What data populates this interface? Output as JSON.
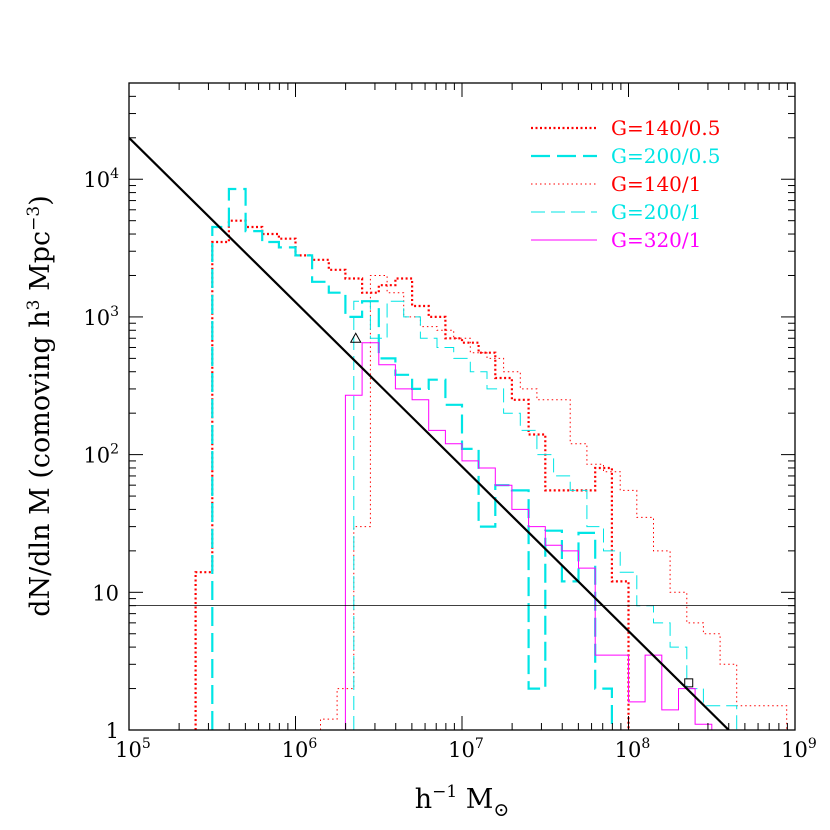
{
  "chart_data": {
    "type": "line",
    "xscale": "log",
    "yscale": "log",
    "xlim": [
      100000,
      1000000000
    ],
    "ylim": [
      1,
      50000
    ],
    "xlabel": "h⁻¹ M⊙",
    "ylabel": "dN/dln M (comoving h³ Mpc⁻³)",
    "xticks": [
      {
        "value": 100000,
        "base": "10",
        "exp": "5"
      },
      {
        "value": 1000000,
        "base": "10",
        "exp": "6"
      },
      {
        "value": 10000000,
        "base": "10",
        "exp": "7"
      },
      {
        "value": 100000000,
        "base": "10",
        "exp": "8"
      },
      {
        "value": 1000000000,
        "base": "10",
        "exp": "9"
      }
    ],
    "yticks": [
      {
        "value": 1,
        "base": "1",
        "exp": ""
      },
      {
        "value": 10,
        "base": "10",
        "exp": ""
      },
      {
        "value": 100,
        "base": "10",
        "exp": "2"
      },
      {
        "value": 1000,
        "base": "10",
        "exp": "3"
      },
      {
        "value": 10000,
        "base": "10",
        "exp": "4"
      }
    ],
    "hline": {
      "y": 8
    },
    "power_law": {
      "x": [
        100000,
        400000000
      ],
      "y": [
        20000,
        1
      ]
    },
    "markers": [
      {
        "shape": "triangle",
        "x": 2300000,
        "y": 700
      },
      {
        "shape": "square",
        "x": 230000000,
        "y": 2.2
      }
    ],
    "series": [
      {
        "name": "G=140/0.5",
        "color": "#ff0000",
        "dash": "2,2.5",
        "width": 2.2,
        "edges_log": [
          5.4,
          5.5,
          5.6,
          5.7,
          5.8,
          5.9,
          6.0,
          6.1,
          6.2,
          6.3,
          6.4,
          6.5,
          6.6,
          6.7,
          6.8,
          6.9,
          7.0,
          7.1,
          7.2,
          7.3,
          7.4,
          7.5,
          7.6,
          7.7,
          7.8,
          7.9,
          8.0
        ],
        "y": [
          14,
          3500,
          5000,
          4500,
          4000,
          3700,
          2800,
          2600,
          2200,
          1900,
          1500,
          1700,
          1900,
          1200,
          1000,
          700,
          650,
          550,
          360,
          250,
          140,
          55,
          55,
          55,
          80,
          12
        ]
      },
      {
        "name": "G=200/0.5",
        "color": "#00e5e5",
        "dash": "19,7",
        "width": 2.2,
        "edges_log": [
          5.5,
          5.6,
          5.7,
          5.8,
          5.9,
          6.0,
          6.1,
          6.2,
          6.3,
          6.4,
          6.5,
          6.6,
          6.7,
          6.8,
          6.9,
          7.0,
          7.1,
          7.2,
          7.3,
          7.4,
          7.5,
          7.6,
          7.7,
          7.8,
          7.9
        ],
        "y": [
          4500,
          8500,
          4200,
          3500,
          3200,
          2800,
          1800,
          1500,
          1000,
          1300,
          500,
          380,
          300,
          350,
          230,
          110,
          30,
          60,
          55,
          2,
          28,
          12,
          27,
          2
        ]
      },
      {
        "name": "G=140/1",
        "color": "#ff0000",
        "dash": "1.5,3",
        "width": 1,
        "edges_log": [
          6.15,
          6.25,
          6.35,
          6.45,
          6.55,
          6.65,
          6.75,
          6.85,
          6.95,
          7.05,
          7.15,
          7.25,
          7.35,
          7.45,
          7.55,
          7.65,
          7.75,
          7.85,
          7.95,
          8.05,
          8.15,
          8.25,
          8.35,
          8.45,
          8.55,
          8.65,
          8.75,
          8.85,
          8.95
        ],
        "y": [
          1.2,
          2,
          30,
          2000,
          1500,
          1000,
          850,
          800,
          700,
          550,
          500,
          400,
          300,
          250,
          250,
          120,
          85,
          75,
          55,
          35,
          20,
          10,
          6,
          5,
          3,
          1.5,
          1.5,
          1.5
        ]
      },
      {
        "name": "G=200/1",
        "color": "#00e5e5",
        "dash": "14,6",
        "width": 1,
        "edges_log": [
          6.35,
          6.45,
          6.55,
          6.65,
          6.75,
          6.85,
          6.95,
          7.05,
          7.15,
          7.25,
          7.35,
          7.45,
          7.55,
          7.65,
          7.75,
          7.85,
          7.95,
          8.05,
          8.15,
          8.25,
          8.35,
          8.45,
          8.55,
          8.65
        ],
        "y": [
          1300,
          700,
          1300,
          1000,
          700,
          600,
          500,
          400,
          300,
          200,
          150,
          100,
          70,
          55,
          30,
          20,
          14,
          8,
          6,
          4,
          2,
          1.5,
          1.5
        ]
      },
      {
        "name": "G=320/1",
        "color": "#ff00ff",
        "dash": "",
        "width": 1,
        "edges_log": [
          6.3,
          6.4,
          6.5,
          6.6,
          6.7,
          6.8,
          6.9,
          7.0,
          7.1,
          7.2,
          7.3,
          7.4,
          7.5,
          7.6,
          7.7,
          7.8,
          7.9,
          8.0,
          8.1,
          8.2,
          8.3,
          8.4,
          8.5
        ],
        "y": [
          270,
          650,
          450,
          300,
          250,
          150,
          120,
          90,
          80,
          60,
          40,
          30,
          22,
          20,
          15,
          3.5,
          3.5,
          1.6,
          3.5,
          1.4,
          2,
          1.1
        ]
      }
    ]
  }
}
